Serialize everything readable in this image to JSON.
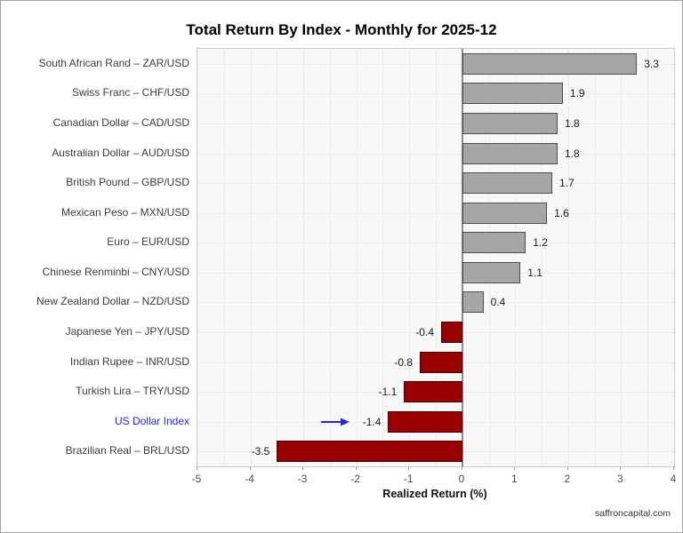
{
  "page": {
    "footer": "saffroncapital.com"
  },
  "chart_data": {
    "type": "bar",
    "orientation": "horizontal",
    "title": "Total Return By Index - Monthly for 2025-12",
    "xlabel": "Realized Return (%)",
    "ylabel": "",
    "xlim": [
      -5,
      4
    ],
    "xticks": [
      -5,
      -4,
      -3,
      -2,
      -1,
      0,
      1,
      2,
      3,
      4
    ],
    "grid": true,
    "legend": "none",
    "categories": [
      "South African Rand – ZAR/USD",
      "Swiss Franc – CHF/USD",
      "Canadian Dollar – CAD/USD",
      "Australian Dollar – AUD/USD",
      "British Pound – GBP/USD",
      "Mexican Peso – MXN/USD",
      "Euro – EUR/USD",
      "Chinese Renminbi – CNY/USD",
      "New Zealand Dollar – NZD/USD",
      "Japanese Yen – JPY/USD",
      "Indian Rupee – INR/USD",
      "Turkish Lira – TRY/USD",
      "US Dollar Index",
      "Brazilian Real – BRL/USD"
    ],
    "values": [
      3.3,
      1.9,
      1.8,
      1.8,
      1.7,
      1.6,
      1.2,
      1.1,
      0.4,
      -0.4,
      -0.8,
      -1.1,
      -1.4,
      -3.5
    ],
    "highlight": {
      "category": "US Dollar Index",
      "annotation": "right-arrow"
    },
    "colors": {
      "positive_bar": "#a6a6a6",
      "positive_border": "#4d4d4d",
      "negative_bar": "#990000",
      "negative_border": "#4a0000",
      "highlight_text": "#2727dd",
      "arrow": "#2727dd"
    }
  }
}
